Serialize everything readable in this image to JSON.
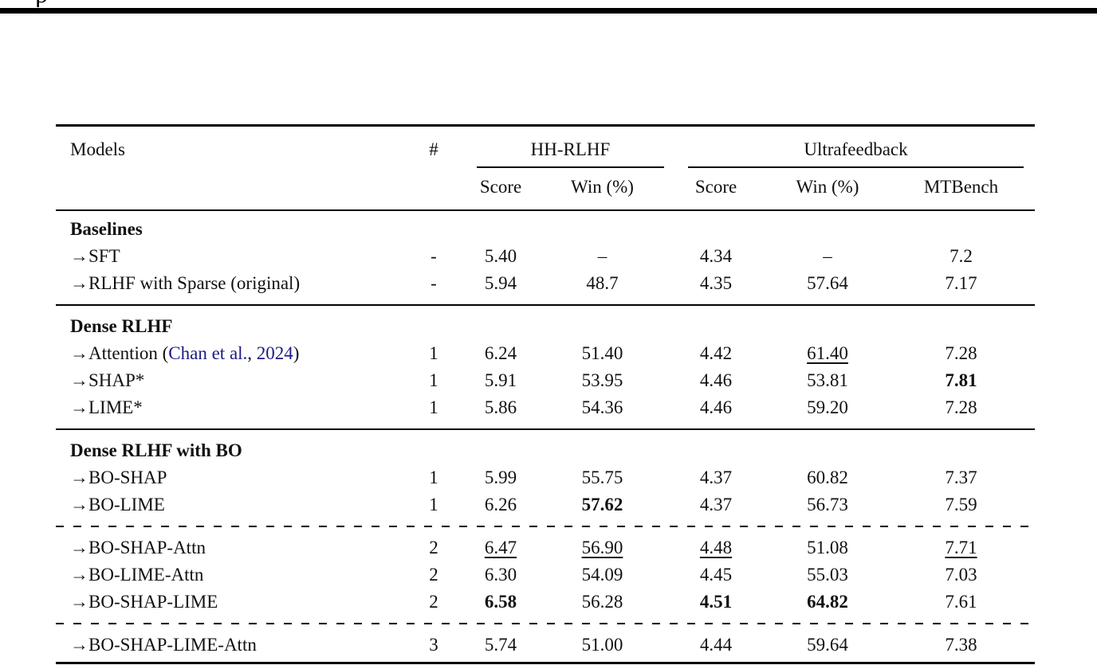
{
  "page_top": {
    "cropped_fragment": "p"
  },
  "colors": {
    "citation_link": "#1b1b85",
    "text": "#111111",
    "rule": "#000000"
  },
  "table": {
    "header": {
      "models": "Models",
      "count": "#",
      "group_hh": "HH-RLHF",
      "group_uf": "Ultrafeedback",
      "sub_hh_score": "Score",
      "sub_hh_win": "Win (%)",
      "sub_uf_score": "Score",
      "sub_uf_win": "Win (%)",
      "sub_mtbench": "MTBench"
    },
    "sections": [
      {
        "rule_before": "none",
        "title": "Baselines",
        "rows": [
          {
            "name": [
              {
                "t": "→SFT"
              }
            ],
            "cells": [
              {
                "t": "-"
              },
              {
                "t": "5.40"
              },
              {
                "t": "–"
              },
              {
                "t": "4.34"
              },
              {
                "t": "–"
              },
              {
                "t": "7.2"
              }
            ]
          },
          {
            "name": [
              {
                "t": "→RLHF with Sparse (original)"
              }
            ],
            "cells": [
              {
                "t": "-"
              },
              {
                "t": "5.94"
              },
              {
                "t": "48.7"
              },
              {
                "t": "4.35"
              },
              {
                "t": "57.64"
              },
              {
                "t": "7.17"
              }
            ]
          }
        ]
      },
      {
        "rule_before": "solid",
        "title": "Dense RLHF",
        "rows": [
          {
            "name": [
              {
                "t": "→Attention ("
              },
              {
                "t": "Chan et al.",
                "link": true
              },
              {
                "t": ", "
              },
              {
                "t": "2024",
                "link": true
              },
              {
                "t": ")"
              }
            ],
            "cells": [
              {
                "t": "1"
              },
              {
                "t": "6.24"
              },
              {
                "t": "51.40"
              },
              {
                "t": "4.42"
              },
              {
                "t": "61.40",
                "u": true
              },
              {
                "t": "7.28"
              }
            ]
          },
          {
            "name": [
              {
                "t": "→SHAP*"
              }
            ],
            "cells": [
              {
                "t": "1"
              },
              {
                "t": "5.91"
              },
              {
                "t": "53.95"
              },
              {
                "t": "4.46"
              },
              {
                "t": "53.81"
              },
              {
                "t": "7.81",
                "b": true
              }
            ]
          },
          {
            "name": [
              {
                "t": "→LIME*"
              }
            ],
            "cells": [
              {
                "t": "1"
              },
              {
                "t": "5.86"
              },
              {
                "t": "54.36"
              },
              {
                "t": "4.46"
              },
              {
                "t": "59.20"
              },
              {
                "t": "7.28"
              }
            ]
          }
        ]
      },
      {
        "rule_before": "solid",
        "title": "Dense RLHF with BO",
        "rows": [
          {
            "name": [
              {
                "t": "→BO-SHAP"
              }
            ],
            "cells": [
              {
                "t": "1"
              },
              {
                "t": "5.99"
              },
              {
                "t": "55.75"
              },
              {
                "t": "4.37"
              },
              {
                "t": "60.82"
              },
              {
                "t": "7.37"
              }
            ]
          },
          {
            "name": [
              {
                "t": "→BO-LIME"
              }
            ],
            "cells": [
              {
                "t": "1"
              },
              {
                "t": "6.26"
              },
              {
                "t": "57.62",
                "b": true
              },
              {
                "t": "4.37"
              },
              {
                "t": "56.73"
              },
              {
                "t": "7.59"
              }
            ]
          }
        ]
      },
      {
        "rule_before": "dashed",
        "title": null,
        "rows": [
          {
            "name": [
              {
                "t": "→BO-SHAP-Attn"
              }
            ],
            "cells": [
              {
                "t": "2"
              },
              {
                "t": "6.47",
                "u": true
              },
              {
                "t": "56.90",
                "u": true
              },
              {
                "t": "4.48",
                "u": true
              },
              {
                "t": "51.08"
              },
              {
                "t": "7.71",
                "u": true
              }
            ]
          },
          {
            "name": [
              {
                "t": "→BO-LIME-Attn"
              }
            ],
            "cells": [
              {
                "t": "2"
              },
              {
                "t": "6.30"
              },
              {
                "t": "54.09"
              },
              {
                "t": "4.45"
              },
              {
                "t": "55.03"
              },
              {
                "t": "7.03"
              }
            ]
          },
          {
            "name": [
              {
                "t": "→BO-SHAP-LIME"
              }
            ],
            "cells": [
              {
                "t": "2"
              },
              {
                "t": "6.58",
                "b": true
              },
              {
                "t": "56.28"
              },
              {
                "t": "4.51",
                "b": true
              },
              {
                "t": "64.82",
                "b": true
              },
              {
                "t": "7.61"
              }
            ]
          }
        ]
      },
      {
        "rule_before": "dashed",
        "title": null,
        "rows": [
          {
            "name": [
              {
                "t": "→BO-SHAP-LIME-Attn"
              }
            ],
            "cells": [
              {
                "t": "3"
              },
              {
                "t": "5.74"
              },
              {
                "t": "51.00"
              },
              {
                "t": "4.44"
              },
              {
                "t": "59.64"
              },
              {
                "t": "7.38"
              }
            ]
          }
        ]
      }
    ],
    "cell_metrics": [
      "count",
      "hh-score",
      "hh-win",
      "uf-score",
      "uf-win",
      "mtbench"
    ]
  }
}
